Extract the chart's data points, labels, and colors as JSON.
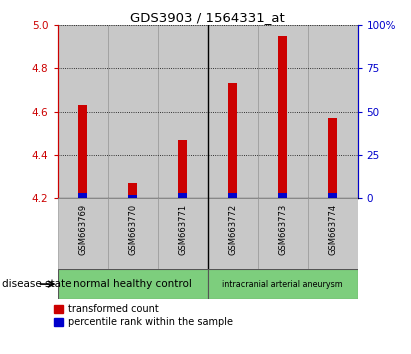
{
  "title": "GDS3903 / 1564331_at",
  "samples": [
    "GSM663769",
    "GSM663770",
    "GSM663771",
    "GSM663772",
    "GSM663773",
    "GSM663774"
  ],
  "transformed_counts": [
    4.63,
    4.27,
    4.47,
    4.73,
    4.95,
    4.57
  ],
  "percentile_ranks": [
    3,
    2,
    3,
    3,
    3,
    3
  ],
  "ylim_left": [
    4.2,
    5.0
  ],
  "yticks_left": [
    4.2,
    4.4,
    4.6,
    4.8,
    5.0
  ],
  "ylim_right": [
    0,
    100
  ],
  "yticks_right": [
    0,
    25,
    50,
    75,
    100
  ],
  "yright_labels": [
    "0",
    "25",
    "50",
    "75",
    "100%"
  ],
  "bar_bottom": 4.2,
  "red_color": "#cc0000",
  "blue_color": "#0000cc",
  "group1_label": "normal healthy control",
  "group2_label": "intracranial arterial aneurysm",
  "group_color": "#7dce7d",
  "disease_state_label": "disease state",
  "legend_red_label": "transformed count",
  "legend_blue_label": "percentile rank within the sample",
  "sample_box_color": "#c8c8c8",
  "left_tick_color": "#cc0000",
  "right_tick_color": "#0000cc",
  "title_fontsize": 9.5
}
